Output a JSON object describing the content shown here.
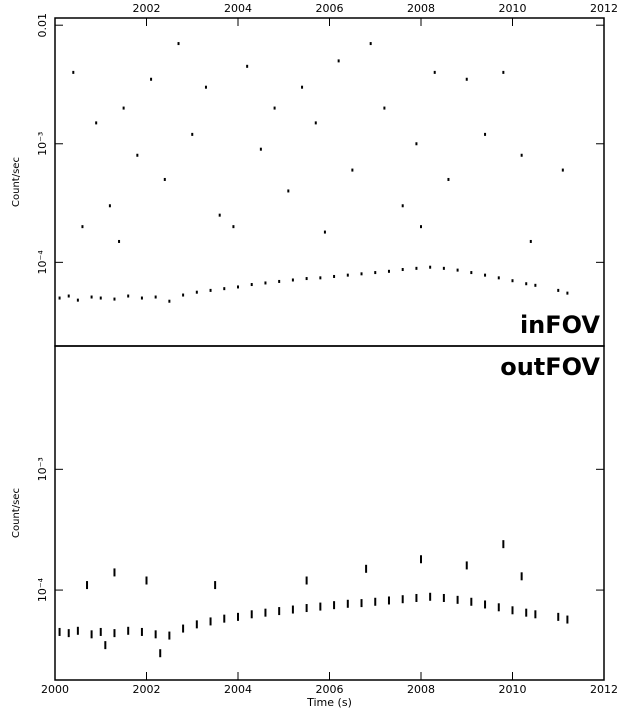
{
  "chart_data": [
    {
      "type": "scatter",
      "annotation": "inFOV",
      "ylabel": "Count/sec",
      "color": "#000000",
      "log_y": true,
      "xtick_side": "top",
      "xlim": [
        2000,
        2012
      ],
      "ylim": [
        1.97e-05,
        0.0115
      ],
      "xticks": [
        2002,
        2004,
        2006,
        2008,
        2010,
        2012
      ],
      "yticks": [
        0.01,
        {
          "value": 0.001,
          "label": "10⁻³"
        },
        {
          "value": 0.0001,
          "label": "10⁻⁴"
        }
      ],
      "x": [
        2000.1,
        2000.3,
        2000.5,
        2000.8,
        2001.0,
        2001.3,
        2001.6,
        2001.9,
        2002.2,
        2002.5,
        2002.8,
        2003.1,
        2003.4,
        2003.7,
        2004.0,
        2004.3,
        2004.6,
        2004.9,
        2005.2,
        2005.5,
        2005.8,
        2006.1,
        2006.4,
        2006.7,
        2007.0,
        2007.3,
        2007.6,
        2007.9,
        2008.2,
        2008.5,
        2008.8,
        2009.1,
        2009.4,
        2009.7,
        2010.0,
        2010.3,
        2010.5,
        2011.0,
        2011.2,
        2000.4,
        2000.9,
        2001.2,
        2001.5,
        2001.8,
        2002.1,
        2002.4,
        2002.7,
        2003.0,
        2003.3,
        2003.6,
        2004.2,
        2004.5,
        2004.8,
        2005.1,
        2005.4,
        2005.7,
        2006.2,
        2006.5,
        2006.9,
        2007.2,
        2007.6,
        2007.9,
        2008.3,
        2008.6,
        2009.0,
        2009.4,
        2009.8,
        2010.2,
        2011.1,
        2000.6,
        2001.4,
        2003.9,
        2005.9,
        2008.0,
        2010.4
      ],
      "values": [
        5e-05,
        5.2e-05,
        4.8e-05,
        5.1e-05,
        5e-05,
        4.9e-05,
        5.2e-05,
        5e-05,
        5.1e-05,
        4.7e-05,
        5.3e-05,
        5.6e-05,
        5.8e-05,
        6e-05,
        6.2e-05,
        6.5e-05,
        6.7e-05,
        6.9e-05,
        7.1e-05,
        7.3e-05,
        7.4e-05,
        7.6e-05,
        7.8e-05,
        8e-05,
        8.2e-05,
        8.4e-05,
        8.7e-05,
        8.9e-05,
        9.1e-05,
        8.9e-05,
        8.6e-05,
        8.2e-05,
        7.8e-05,
        7.4e-05,
        7e-05,
        6.6e-05,
        6.4e-05,
        5.8e-05,
        5.5e-05,
        0.004,
        0.0015,
        0.0003,
        0.002,
        0.0008,
        0.0035,
        0.0005,
        0.007,
        0.0012,
        0.003,
        0.00025,
        0.0045,
        0.0009,
        0.002,
        0.0004,
        0.003,
        0.0015,
        0.005,
        0.0006,
        0.007,
        0.002,
        0.0003,
        0.001,
        0.004,
        0.0005,
        0.0035,
        0.0012,
        0.004,
        0.0008,
        0.0006,
        0.0002,
        0.00015,
        0.0002,
        0.00018,
        0.0002,
        0.00015
      ]
    },
    {
      "type": "scatter",
      "annotation": "outFOV",
      "ylabel": "Count/sec",
      "xlabel": "Time (s)",
      "color": "#000000",
      "log_y": true,
      "xtick_side": "bottom",
      "xlim": [
        2000,
        2012
      ],
      "ylim": [
        1.8e-05,
        0.0105
      ],
      "xticks": [
        2000,
        2002,
        2004,
        2006,
        2008,
        2010,
        2012
      ],
      "yticks": [
        {
          "value": 0.001,
          "label": "10⁻³"
        },
        {
          "value": 0.0001,
          "label": "10⁻⁴"
        }
      ],
      "x": [
        2000.1,
        2000.3,
        2000.5,
        2000.8,
        2001.0,
        2001.3,
        2001.6,
        2001.9,
        2002.2,
        2002.5,
        2002.8,
        2003.1,
        2003.4,
        2003.7,
        2004.0,
        2004.3,
        2004.6,
        2004.9,
        2005.2,
        2005.5,
        2005.8,
        2006.1,
        2006.4,
        2006.7,
        2007.0,
        2007.3,
        2007.6,
        2007.9,
        2008.2,
        2008.5,
        2008.8,
        2009.1,
        2009.4,
        2009.7,
        2010.0,
        2010.3,
        2010.5,
        2011.0,
        2011.2,
        2000.7,
        2001.3,
        2002.0,
        2003.5,
        2005.5,
        2006.8,
        2008.0,
        2009.0,
        2009.8,
        2010.2,
        2002.3,
        2001.1
      ],
      "values": [
        4.5e-05,
        4.4e-05,
        4.6e-05,
        4.3e-05,
        4.5e-05,
        4.4e-05,
        4.6e-05,
        4.5e-05,
        4.3e-05,
        4.2e-05,
        4.8e-05,
        5.2e-05,
        5.5e-05,
        5.8e-05,
        6e-05,
        6.3e-05,
        6.5e-05,
        6.7e-05,
        6.9e-05,
        7.1e-05,
        7.3e-05,
        7.5e-05,
        7.7e-05,
        7.8e-05,
        8e-05,
        8.2e-05,
        8.4e-05,
        8.6e-05,
        8.8e-05,
        8.6e-05,
        8.3e-05,
        8e-05,
        7.6e-05,
        7.2e-05,
        6.8e-05,
        6.5e-05,
        6.3e-05,
        6e-05,
        5.7e-05,
        0.00011,
        0.00014,
        0.00012,
        0.00011,
        0.00012,
        0.00015,
        0.00018,
        0.00016,
        0.00024,
        0.00013,
        3e-05,
        3.5e-05
      ]
    }
  ]
}
